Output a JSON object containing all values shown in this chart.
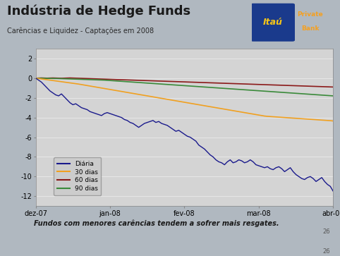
{
  "title": "Indústria de Hedge Funds",
  "subtitle": "Carências e Liquidez - Captações em 2008",
  "footer_text": "Fundos com menores carências tendem a sofrer mais resgates.",
  "background_color": "#b0b8c0",
  "plot_bg_color": "#d4d4d4",
  "header_bg_color": "#b0b8c0",
  "ylim": [
    -13,
    3
  ],
  "yticks": [
    2,
    0,
    -2,
    -4,
    -6,
    -8,
    -10,
    -12
  ],
  "xtick_labels": [
    "dez-07",
    "jan-08",
    "fev-08",
    "mar-08",
    "abr-08"
  ],
  "legend_labels": [
    "Diária",
    "30 dias",
    "60 dias",
    "90 dias"
  ],
  "legend_colors": [
    "#1a1a8c",
    "#f0a020",
    "#8b1a1a",
    "#3a8a3a"
  ],
  "logo_box_color": "#1a3a8c",
  "logo_itau_color": "#f5c518",
  "logo_private_color": "#f5a020",
  "line_daily_x": [
    0,
    1,
    2,
    3,
    4,
    5,
    6,
    7,
    8,
    9,
    10,
    11,
    12,
    13,
    14,
    15,
    16,
    17,
    18,
    19,
    20,
    21,
    22,
    23,
    24,
    25,
    26,
    27,
    28,
    29,
    30,
    31,
    32,
    33,
    34,
    35,
    36,
    37,
    38,
    39,
    40,
    41,
    42,
    43,
    44,
    45,
    46,
    47,
    48,
    49,
    50,
    51,
    52,
    53,
    54,
    55,
    56,
    57,
    58,
    59,
    60,
    61,
    62,
    63,
    64,
    65,
    66,
    67,
    68,
    69,
    70,
    71,
    72,
    73,
    74,
    75,
    76,
    77,
    78,
    79,
    80,
    81,
    82,
    83,
    84,
    85,
    86,
    87,
    88,
    89,
    90,
    91,
    92,
    93,
    94,
    95,
    96,
    97,
    98,
    99,
    100,
    101,
    102,
    103,
    104
  ],
  "line_daily": [
    0,
    -0.2,
    -0.4,
    -0.7,
    -1.0,
    -1.3,
    -1.5,
    -1.7,
    -1.8,
    -1.6,
    -1.9,
    -2.2,
    -2.5,
    -2.7,
    -2.6,
    -2.8,
    -3.0,
    -3.1,
    -3.2,
    -3.4,
    -3.5,
    -3.6,
    -3.7,
    -3.8,
    -3.6,
    -3.5,
    -3.6,
    -3.7,
    -3.8,
    -3.9,
    -4.0,
    -4.2,
    -4.3,
    -4.5,
    -4.6,
    -4.8,
    -5.0,
    -4.8,
    -4.6,
    -4.5,
    -4.4,
    -4.3,
    -4.5,
    -4.4,
    -4.6,
    -4.7,
    -4.8,
    -5.0,
    -5.2,
    -5.4,
    -5.3,
    -5.5,
    -5.7,
    -5.9,
    -6.0,
    -6.2,
    -6.4,
    -6.8,
    -7.0,
    -7.2,
    -7.5,
    -7.8,
    -8.0,
    -8.3,
    -8.5,
    -8.6,
    -8.8,
    -8.5,
    -8.3,
    -8.6,
    -8.5,
    -8.3,
    -8.4,
    -8.6,
    -8.5,
    -8.3,
    -8.5,
    -8.8,
    -8.9,
    -9.0,
    -9.1,
    -9.0,
    -9.2,
    -9.3,
    -9.1,
    -9.0,
    -9.2,
    -9.5,
    -9.3,
    -9.1,
    -9.5,
    -9.8,
    -10.0,
    -10.2,
    -10.3,
    -10.1,
    -10.0,
    -10.2,
    -10.5,
    -10.3,
    -10.1,
    -10.5,
    -10.8,
    -11.0,
    -11.5
  ],
  "line_30d": [
    0,
    -0.04,
    -0.08,
    -0.12,
    -0.16,
    -0.2,
    -0.24,
    -0.28,
    -0.32,
    -0.36,
    -0.4,
    -0.44,
    -0.48,
    -0.52,
    -0.56,
    -0.6,
    -0.65,
    -0.7,
    -0.75,
    -0.8,
    -0.85,
    -0.9,
    -0.95,
    -1.0,
    -1.05,
    -1.1,
    -1.15,
    -1.2,
    -1.25,
    -1.3,
    -1.35,
    -1.4,
    -1.45,
    -1.5,
    -1.55,
    -1.6,
    -1.65,
    -1.7,
    -1.75,
    -1.8,
    -1.85,
    -1.9,
    -1.95,
    -2.0,
    -2.05,
    -2.1,
    -2.15,
    -2.2,
    -2.25,
    -2.3,
    -2.35,
    -2.4,
    -2.45,
    -2.5,
    -2.55,
    -2.6,
    -2.65,
    -2.7,
    -2.75,
    -2.8,
    -2.85,
    -2.9,
    -2.95,
    -3.0,
    -3.05,
    -3.1,
    -3.15,
    -3.2,
    -3.25,
    -3.3,
    -3.35,
    -3.4,
    -3.45,
    -3.5,
    -3.55,
    -3.6,
    -3.65,
    -3.7,
    -3.75,
    -3.8,
    -3.85,
    -3.88,
    -3.9,
    -3.92,
    -3.94,
    -3.96,
    -3.98,
    -4.0,
    -4.02,
    -4.04,
    -4.06,
    -4.08,
    -4.1,
    -4.12,
    -4.14,
    -4.16,
    -4.18,
    -4.2,
    -4.22,
    -4.24,
    -4.26,
    -4.28,
    -4.3,
    -4.32,
    -4.35
  ],
  "line_60d": [
    0,
    0.01,
    0.02,
    0.01,
    0.0,
    0.01,
    0.02,
    0.01,
    0.0,
    -0.01,
    0.0,
    0.01,
    0.02,
    0.01,
    0.0,
    -0.01,
    -0.02,
    -0.03,
    -0.04,
    -0.05,
    -0.06,
    -0.07,
    -0.08,
    -0.09,
    -0.1,
    -0.11,
    -0.12,
    -0.13,
    -0.14,
    -0.15,
    -0.16,
    -0.17,
    -0.18,
    -0.19,
    -0.2,
    -0.21,
    -0.22,
    -0.23,
    -0.24,
    -0.25,
    -0.26,
    -0.27,
    -0.28,
    -0.29,
    -0.3,
    -0.31,
    -0.32,
    -0.33,
    -0.34,
    -0.35,
    -0.36,
    -0.37,
    -0.38,
    -0.39,
    -0.4,
    -0.41,
    -0.42,
    -0.43,
    -0.44,
    -0.45,
    -0.46,
    -0.47,
    -0.48,
    -0.49,
    -0.5,
    -0.51,
    -0.52,
    -0.53,
    -0.54,
    -0.55,
    -0.56,
    -0.57,
    -0.58,
    -0.59,
    -0.6,
    -0.61,
    -0.62,
    -0.63,
    -0.64,
    -0.65,
    -0.66,
    -0.67,
    -0.68,
    -0.69,
    -0.7,
    -0.71,
    -0.72,
    -0.73,
    -0.74,
    -0.75,
    -0.76,
    -0.77,
    -0.78,
    -0.79,
    -0.8,
    -0.81,
    -0.82,
    -0.83,
    -0.84,
    -0.85,
    -0.86,
    -0.87,
    -0.88,
    -0.89,
    -0.9
  ],
  "line_90d": [
    0,
    -0.005,
    -0.01,
    -0.015,
    -0.02,
    -0.025,
    -0.03,
    -0.035,
    -0.04,
    -0.05,
    -0.06,
    -0.07,
    -0.08,
    -0.09,
    -0.1,
    -0.11,
    -0.12,
    -0.13,
    -0.14,
    -0.15,
    -0.16,
    -0.17,
    -0.18,
    -0.19,
    -0.2,
    -0.22,
    -0.24,
    -0.26,
    -0.28,
    -0.3,
    -0.32,
    -0.34,
    -0.36,
    -0.38,
    -0.4,
    -0.42,
    -0.44,
    -0.46,
    -0.48,
    -0.5,
    -0.52,
    -0.54,
    -0.56,
    -0.58,
    -0.6,
    -0.62,
    -0.64,
    -0.66,
    -0.68,
    -0.7,
    -0.72,
    -0.74,
    -0.76,
    -0.78,
    -0.8,
    -0.82,
    -0.84,
    -0.86,
    -0.88,
    -0.9,
    -0.92,
    -0.94,
    -0.96,
    -0.98,
    -1.0,
    -1.02,
    -1.04,
    -1.06,
    -1.08,
    -1.1,
    -1.12,
    -1.14,
    -1.16,
    -1.18,
    -1.2,
    -1.22,
    -1.24,
    -1.26,
    -1.28,
    -1.3,
    -1.32,
    -1.34,
    -1.36,
    -1.38,
    -1.4,
    -1.42,
    -1.44,
    -1.46,
    -1.48,
    -1.5,
    -1.52,
    -1.54,
    -1.56,
    -1.58,
    -1.6,
    -1.62,
    -1.64,
    -1.66,
    -1.68,
    -1.7,
    -1.72,
    -1.74,
    -1.76,
    -1.78,
    -1.8
  ]
}
